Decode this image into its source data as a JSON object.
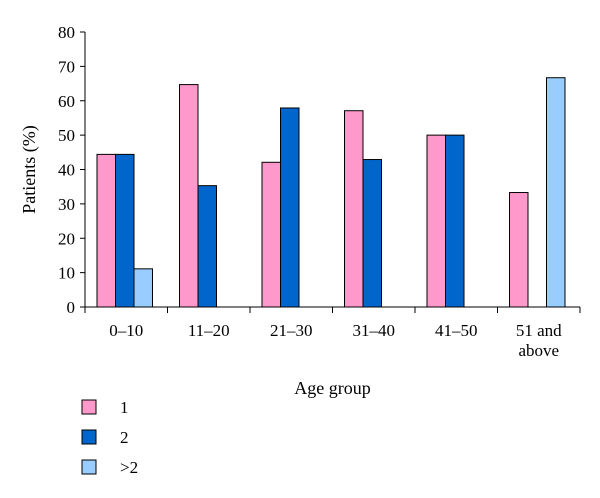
{
  "chart_data": {
    "type": "bar",
    "title": "",
    "xlabel": "Age group",
    "ylabel": "Patients (%)",
    "ylim": [
      0,
      80
    ],
    "yticks": [
      0,
      10,
      20,
      30,
      40,
      50,
      60,
      70,
      80
    ],
    "categories": [
      [
        "0–10"
      ],
      [
        "11–20"
      ],
      [
        "21–30"
      ],
      [
        "31–40"
      ],
      [
        "41–50"
      ],
      [
        "51 and",
        "above"
      ]
    ],
    "series": [
      {
        "name": "1",
        "color": "#ff99cc",
        "values": [
          44.4,
          64.7,
          42.1,
          57.1,
          50.0,
          33.3
        ]
      },
      {
        "name": "2",
        "color": "#0066cc",
        "values": [
          44.4,
          35.3,
          57.9,
          42.9,
          50.0,
          0
        ]
      },
      {
        "name": ">2",
        "color": "#99ccff",
        "values": [
          11.1,
          0,
          0,
          0,
          0,
          66.7
        ]
      }
    ],
    "legend_position": "bottom-left",
    "grid": false
  }
}
